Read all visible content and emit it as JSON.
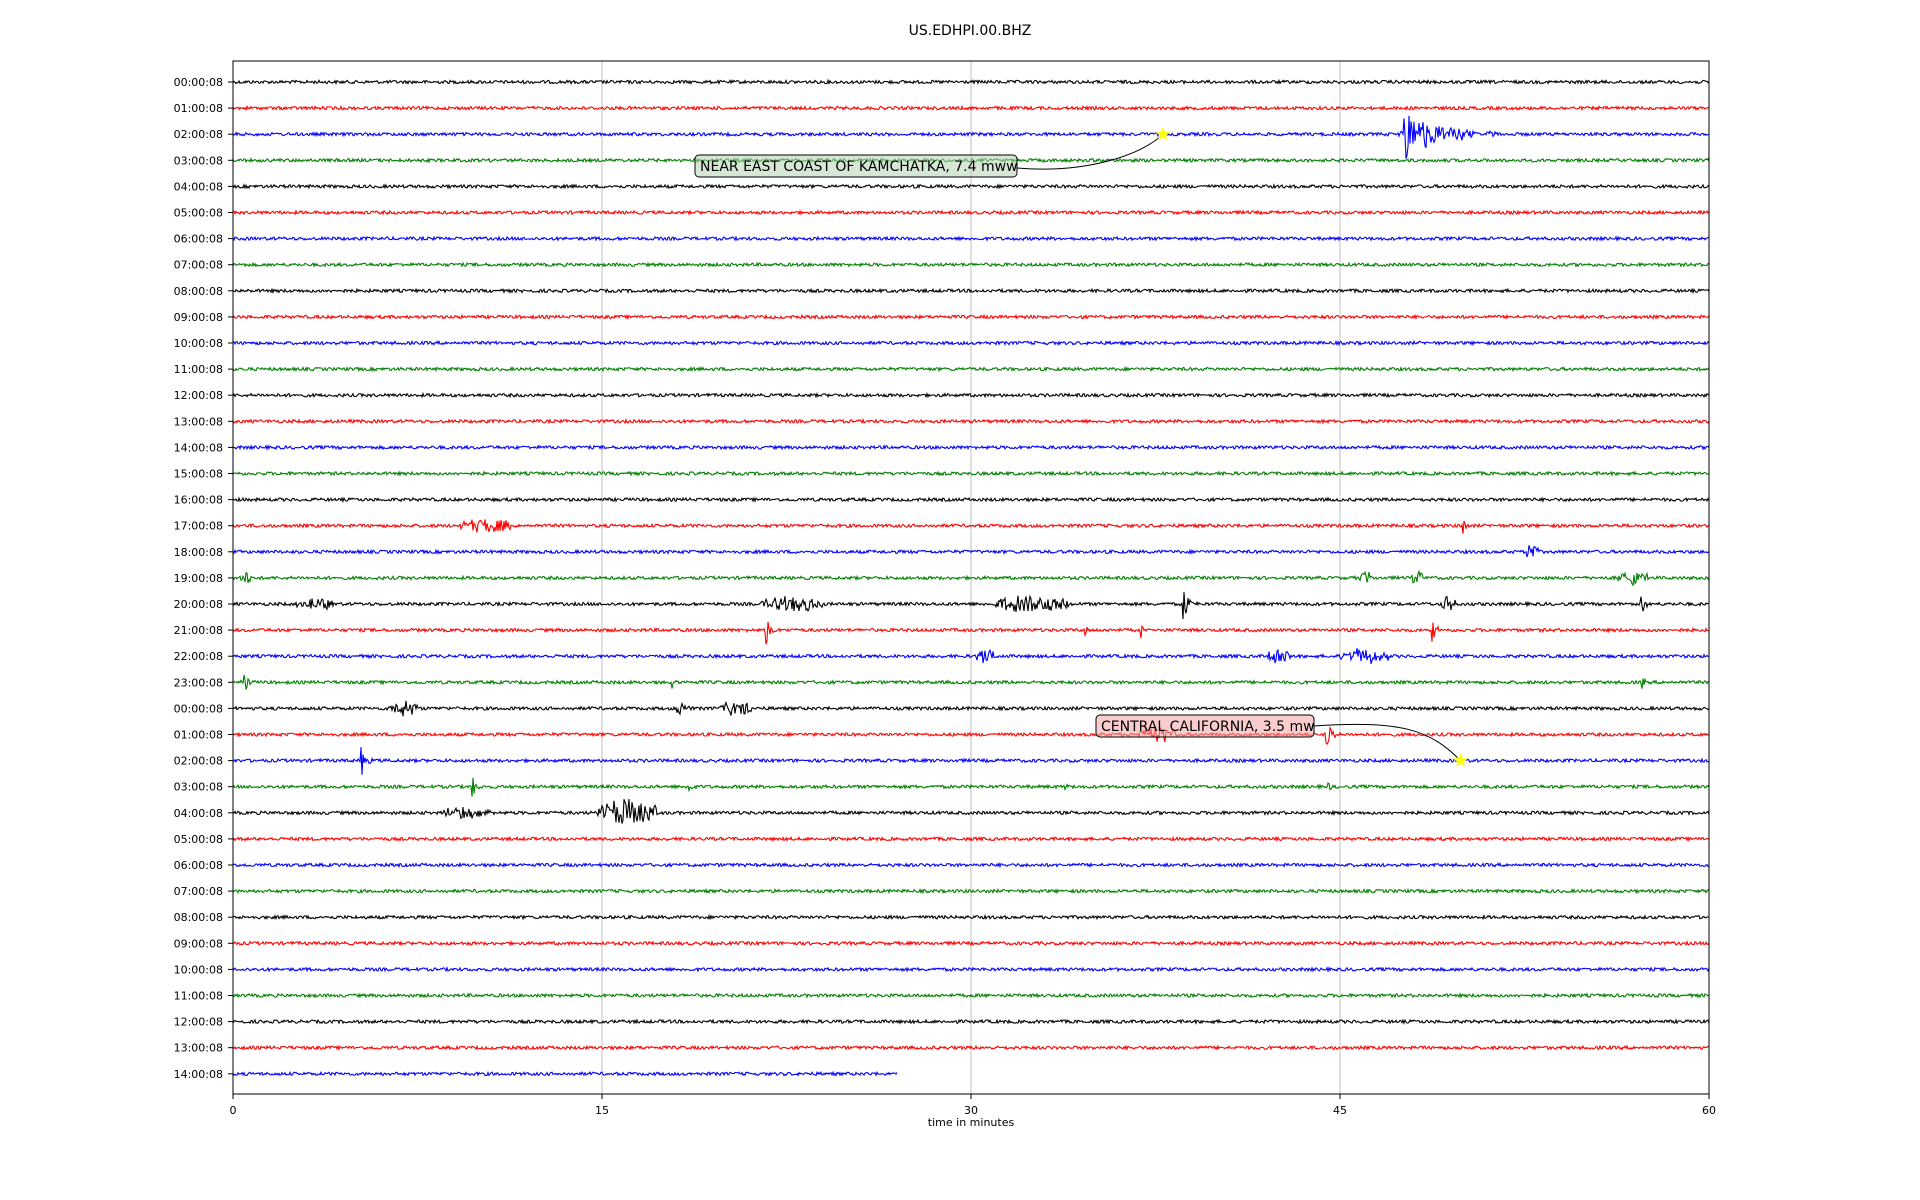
{
  "chart_data": {
    "type": "line",
    "title": "US.EDHPI.00.BHZ",
    "xlabel": "time in minutes",
    "ylabel": "",
    "xlim": [
      0,
      60
    ],
    "x_ticks": [
      0,
      15,
      30,
      45,
      60
    ],
    "grid": {
      "vertical": true,
      "horizontal": false
    },
    "line_colors": [
      "#000000",
      "#ff0000",
      "#0000ff",
      "#008000"
    ],
    "last_trace_end_minute": 27,
    "traces": [
      {
        "label": "00:00:08",
        "color": "#000000",
        "events": []
      },
      {
        "label": "01:00:08",
        "color": "#ff0000",
        "events": []
      },
      {
        "label": "02:00:08",
        "color": "#0000ff",
        "events": [
          {
            "minute": 47.6,
            "amplitude": 1.0,
            "duration": 4.0,
            "type": "quake"
          }
        ]
      },
      {
        "label": "03:00:08",
        "color": "#008000",
        "events": []
      },
      {
        "label": "04:00:08",
        "color": "#000000",
        "events": []
      },
      {
        "label": "05:00:08",
        "color": "#ff0000",
        "events": []
      },
      {
        "label": "06:00:08",
        "color": "#0000ff",
        "events": []
      },
      {
        "label": "07:00:08",
        "color": "#008000",
        "events": []
      },
      {
        "label": "08:00:08",
        "color": "#000000",
        "events": []
      },
      {
        "label": "09:00:08",
        "color": "#ff0000",
        "events": []
      },
      {
        "label": "10:00:08",
        "color": "#0000ff",
        "events": []
      },
      {
        "label": "11:00:08",
        "color": "#008000",
        "events": []
      },
      {
        "label": "12:00:08",
        "color": "#000000",
        "events": []
      },
      {
        "label": "13:00:08",
        "color": "#ff0000",
        "events": []
      },
      {
        "label": "14:00:08",
        "color": "#0000ff",
        "events": []
      },
      {
        "label": "15:00:08",
        "color": "#008000",
        "events": []
      },
      {
        "label": "16:00:08",
        "color": "#000000",
        "events": []
      },
      {
        "label": "17:00:08",
        "color": "#ff0000",
        "events": [
          {
            "minute": 9.2,
            "amplitude": 0.5,
            "duration": 2.2,
            "type": "burst"
          },
          {
            "minute": 50,
            "amplitude": 0.5,
            "duration": 0.3,
            "type": "spike"
          }
        ]
      },
      {
        "label": "18:00:08",
        "color": "#0000ff",
        "events": [
          {
            "minute": 52.5,
            "amplitude": 0.6,
            "duration": 0.6,
            "type": "burst"
          }
        ]
      },
      {
        "label": "19:00:08",
        "color": "#008000",
        "events": [
          {
            "minute": 0.3,
            "amplitude": 0.5,
            "duration": 0.4,
            "type": "burst"
          },
          {
            "minute": 45.8,
            "amplitude": 0.5,
            "duration": 0.5,
            "type": "burst"
          },
          {
            "minute": 47.9,
            "amplitude": 0.5,
            "duration": 0.5,
            "type": "burst"
          },
          {
            "minute": 56.3,
            "amplitude": 0.5,
            "duration": 1.2,
            "type": "burst"
          }
        ]
      },
      {
        "label": "20:00:08",
        "color": "#000000",
        "events": [
          {
            "minute": 2.6,
            "amplitude": 0.5,
            "duration": 1.5,
            "type": "burst"
          },
          {
            "minute": 21.5,
            "amplitude": 0.5,
            "duration": 2.5,
            "type": "burst"
          },
          {
            "minute": 31.0,
            "amplitude": 0.6,
            "duration": 3.0,
            "type": "burst"
          },
          {
            "minute": 38.6,
            "amplitude": 1.0,
            "duration": 0.6,
            "type": "spike"
          },
          {
            "minute": 49.1,
            "amplitude": 0.5,
            "duration": 0.6,
            "type": "burst"
          },
          {
            "minute": 57.2,
            "amplitude": 0.7,
            "duration": 0.5,
            "type": "spike"
          }
        ]
      },
      {
        "label": "21:00:08",
        "color": "#ff0000",
        "events": [
          {
            "minute": 21.6,
            "amplitude": 1.0,
            "duration": 0.5,
            "type": "spike"
          },
          {
            "minute": 34.6,
            "amplitude": 0.5,
            "duration": 0.3,
            "type": "spike"
          },
          {
            "minute": 36.9,
            "amplitude": 0.4,
            "duration": 0.3,
            "type": "spike"
          },
          {
            "minute": 48.7,
            "amplitude": 0.6,
            "duration": 0.5,
            "type": "spike"
          }
        ]
      },
      {
        "label": "22:00:08",
        "color": "#0000ff",
        "events": [
          {
            "minute": 30.2,
            "amplitude": 0.5,
            "duration": 0.8,
            "type": "burst"
          },
          {
            "minute": 42.0,
            "amplitude": 0.5,
            "duration": 1.0,
            "type": "burst"
          },
          {
            "minute": 45.0,
            "amplitude": 0.5,
            "duration": 2.0,
            "type": "burst"
          }
        ]
      },
      {
        "label": "23:00:08",
        "color": "#008000",
        "events": [
          {
            "minute": 0.3,
            "amplitude": 0.5,
            "duration": 0.4,
            "type": "burst"
          },
          {
            "minute": 17.8,
            "amplitude": 0.4,
            "duration": 0.3,
            "type": "spike"
          },
          {
            "minute": 57.2,
            "amplitude": 0.6,
            "duration": 0.3,
            "type": "spike"
          }
        ]
      },
      {
        "label": "00:00:08",
        "color": "#000000",
        "events": [
          {
            "minute": 6.3,
            "amplitude": 0.6,
            "duration": 1.2,
            "type": "burst"
          },
          {
            "minute": 18.0,
            "amplitude": 0.5,
            "duration": 0.6,
            "type": "burst"
          },
          {
            "minute": 19.8,
            "amplitude": 0.5,
            "duration": 1.3,
            "type": "burst"
          }
        ]
      },
      {
        "label": "01:00:08",
        "color": "#ff0000",
        "events": [
          {
            "minute": 36.8,
            "amplitude": 0.6,
            "duration": 1.5,
            "type": "burst"
          },
          {
            "minute": 44.4,
            "amplitude": 1.0,
            "duration": 0.6,
            "type": "spike"
          }
        ]
      },
      {
        "label": "02:00:08",
        "color": "#0000ff",
        "events": [
          {
            "minute": 5.2,
            "amplitude": 0.7,
            "duration": 0.5,
            "type": "spike"
          }
        ]
      },
      {
        "label": "03:00:08",
        "color": "#008000",
        "events": [
          {
            "minute": 9.7,
            "amplitude": 0.6,
            "duration": 0.4,
            "type": "spike"
          },
          {
            "minute": 18.5,
            "amplitude": 0.4,
            "duration": 0.3,
            "type": "spike"
          },
          {
            "minute": 33.8,
            "amplitude": 0.3,
            "duration": 0.3,
            "type": "spike"
          },
          {
            "minute": 44.5,
            "amplitude": 0.3,
            "duration": 0.3,
            "type": "spike"
          }
        ]
      },
      {
        "label": "04:00:08",
        "color": "#000000",
        "events": [
          {
            "minute": 8.5,
            "amplitude": 0.4,
            "duration": 2.0,
            "type": "burst"
          },
          {
            "minute": 14.8,
            "amplitude": 0.9,
            "duration": 2.5,
            "type": "burst"
          }
        ]
      },
      {
        "label": "05:00:08",
        "color": "#ff0000",
        "events": []
      },
      {
        "label": "06:00:08",
        "color": "#0000ff",
        "events": []
      },
      {
        "label": "07:00:08",
        "color": "#008000",
        "events": []
      },
      {
        "label": "08:00:08",
        "color": "#000000",
        "events": []
      },
      {
        "label": "09:00:08",
        "color": "#ff0000",
        "events": []
      },
      {
        "label": "10:00:08",
        "color": "#0000ff",
        "events": []
      },
      {
        "label": "11:00:08",
        "color": "#008000",
        "events": []
      },
      {
        "label": "12:00:08",
        "color": "#000000",
        "events": []
      },
      {
        "label": "13:00:08",
        "color": "#ff0000",
        "events": []
      },
      {
        "label": "14:00:08",
        "color": "#0000ff",
        "events": []
      }
    ],
    "annotations": [
      {
        "text": "NEAR EAST COAST OF KAMCHATKA, 7.4 mww",
        "trace_index": 2,
        "minute": 37.8,
        "box_color": "#b4d4b4"
      },
      {
        "text": "CENTRAL CALIFORNIA, 3.5 mw",
        "trace_index": 26,
        "minute": 49.9,
        "box_color": "#f4a4a4"
      }
    ],
    "marker_color": "#ffff00"
  }
}
